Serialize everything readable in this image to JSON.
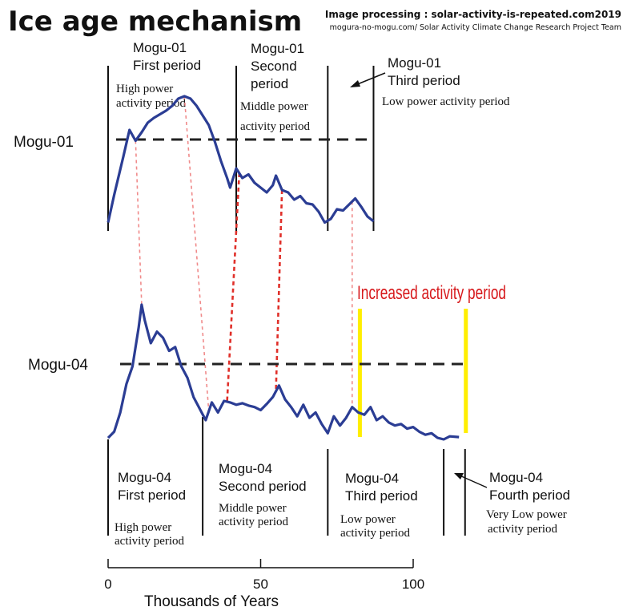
{
  "title": "Ice age mechanism",
  "credit_line1": "Image processing : solar-activity-is-repeated.com2019",
  "credit_line2": "mogura-no-mogu.com/ Solar Activity Climate Change Research Project Team",
  "colors": {
    "series": "#2b3d94",
    "dotted_links": "#e0302a",
    "dotted_links_light": "#f08a8a",
    "highlight": "#ffee00",
    "highlight_text": "#d7191c"
  },
  "chart_data": {
    "type": "line",
    "xlabel": "Thousands of Years",
    "x_ticks": [
      0,
      50,
      100
    ],
    "xlim": [
      0,
      115
    ],
    "series": [
      {
        "name": "Mogu-01",
        "x": [
          0,
          2,
          5,
          7,
          9,
          11,
          13,
          15,
          17,
          19,
          21,
          23,
          25,
          27,
          29,
          31,
          33,
          35,
          37,
          39,
          40,
          42,
          44,
          46,
          48,
          50,
          52,
          54,
          55,
          57,
          59,
          61,
          63,
          65,
          67,
          69,
          71,
          73,
          75,
          77,
          79,
          81,
          83,
          85,
          87
        ],
        "y": [
          0.05,
          0.28,
          0.6,
          0.82,
          0.73,
          0.8,
          0.88,
          0.92,
          0.95,
          0.98,
          1.02,
          1.08,
          1.1,
          1.08,
          1.02,
          0.94,
          0.86,
          0.72,
          0.56,
          0.42,
          0.34,
          0.5,
          0.42,
          0.45,
          0.38,
          0.34,
          0.3,
          0.36,
          0.44,
          0.32,
          0.3,
          0.24,
          0.27,
          0.21,
          0.2,
          0.14,
          0.05,
          0.08,
          0.16,
          0.15,
          0.2,
          0.25,
          0.18,
          0.1,
          0.06
        ],
        "periods": [
          {
            "label_line1": "Mogu-01",
            "label_line2": "First period",
            "description_line1": "High power",
            "description_line2": "activity period"
          },
          {
            "label_line1": "Mogu-01",
            "label_line2": "Second",
            "label_line3": "period",
            "description_line1": "Middle power",
            "description_line2": "activity period"
          },
          {
            "label_line1": "Mogu-01",
            "label_line2": "Third period",
            "description_line1": "Low power activity period",
            "description_line2": ""
          }
        ],
        "boundaries": [
          0,
          42,
          72,
          87
        ]
      },
      {
        "name": "Mogu-04",
        "x": [
          0,
          2,
          4,
          6,
          8,
          10,
          11,
          12,
          14,
          16,
          18,
          20,
          22,
          24,
          26,
          28,
          30,
          32,
          34,
          36,
          38,
          40,
          42,
          44,
          46,
          48,
          50,
          52,
          54,
          56,
          58,
          60,
          62,
          64,
          66,
          68,
          70,
          72,
          74,
          76,
          78,
          80,
          82,
          84,
          86,
          88,
          90,
          92,
          94,
          96,
          98,
          100,
          102,
          104,
          106,
          108,
          110,
          112,
          115
        ],
        "y": [
          0.02,
          0.1,
          0.35,
          0.72,
          0.95,
          1.45,
          1.75,
          1.55,
          1.25,
          1.4,
          1.32,
          1.15,
          1.2,
          0.95,
          0.8,
          0.55,
          0.4,
          0.25,
          0.48,
          0.35,
          0.5,
          0.48,
          0.45,
          0.47,
          0.44,
          0.42,
          0.38,
          0.46,
          0.55,
          0.7,
          0.52,
          0.42,
          0.3,
          0.45,
          0.28,
          0.35,
          0.2,
          0.08,
          0.3,
          0.18,
          0.28,
          0.42,
          0.35,
          0.32,
          0.42,
          0.25,
          0.3,
          0.22,
          0.18,
          0.2,
          0.14,
          0.16,
          0.1,
          0.06,
          0.08,
          0.02,
          0.0,
          0.04,
          0.03
        ],
        "periods": [
          {
            "label_line1": "Mogu-04",
            "label_line2": "First period",
            "description_line1": "High power",
            "description_line2": "activity period"
          },
          {
            "label_line1": "Mogu-04",
            "label_line2": "Second period",
            "description_line1": "Middle power",
            "description_line2": "activity period"
          },
          {
            "label_line1": "Mogu-04",
            "label_line2": "Third period",
            "description_line1": "Low power",
            "description_line2": "activity period"
          },
          {
            "label_line1": "Mogu-04",
            "label_line2": "Fourth period",
            "description_line1": "Very Low power",
            "description_line2": "activity period"
          }
        ],
        "boundaries": [
          0,
          31,
          72,
          110,
          117
        ]
      }
    ],
    "links": [
      {
        "from_x": 9,
        "to_x": 11
      },
      {
        "from_x": 25,
        "to_x": 33
      },
      {
        "from_x": 43,
        "to_x": 39
      },
      {
        "from_x": 57,
        "to_x": 55
      },
      {
        "from_x": 80,
        "to_x": 80
      }
    ],
    "annotation": {
      "text": "Increased activity period",
      "start_x": 82,
      "end_x": 117
    }
  }
}
